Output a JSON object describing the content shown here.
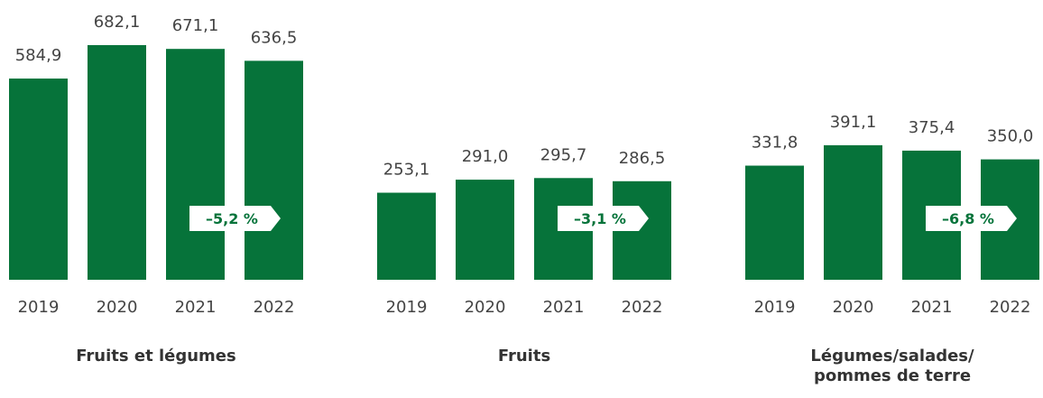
{
  "chart_data": [
    {
      "type": "bar",
      "title": "Fruits et légumes",
      "categories": [
        "2019",
        "2020",
        "2021",
        "2022"
      ],
      "values": [
        584.9,
        682.1,
        671.1,
        636.5
      ],
      "value_labels": [
        "584,9",
        "682,1",
        "671,1",
        "636,5"
      ],
      "annotation": "–5,2 %",
      "color": "#06733a"
    },
    {
      "type": "bar",
      "title": "Fruits",
      "categories": [
        "2019",
        "2020",
        "2021",
        "2022"
      ],
      "values": [
        253.1,
        291.0,
        295.7,
        286.5
      ],
      "value_labels": [
        "253,1",
        "291,0",
        "295,7",
        "286,5"
      ],
      "annotation": "–3,1 %",
      "color": "#06733a"
    },
    {
      "type": "bar",
      "title": "Légumes/salades/ pommes de terre",
      "categories": [
        "2019",
        "2020",
        "2021",
        "2022"
      ],
      "values": [
        331.8,
        391.1,
        375.4,
        350.0
      ],
      "value_labels": [
        "331,8",
        "391,1",
        "375,4",
        "350,0"
      ],
      "annotation": "–6,8 %",
      "color": "#06733a"
    }
  ]
}
